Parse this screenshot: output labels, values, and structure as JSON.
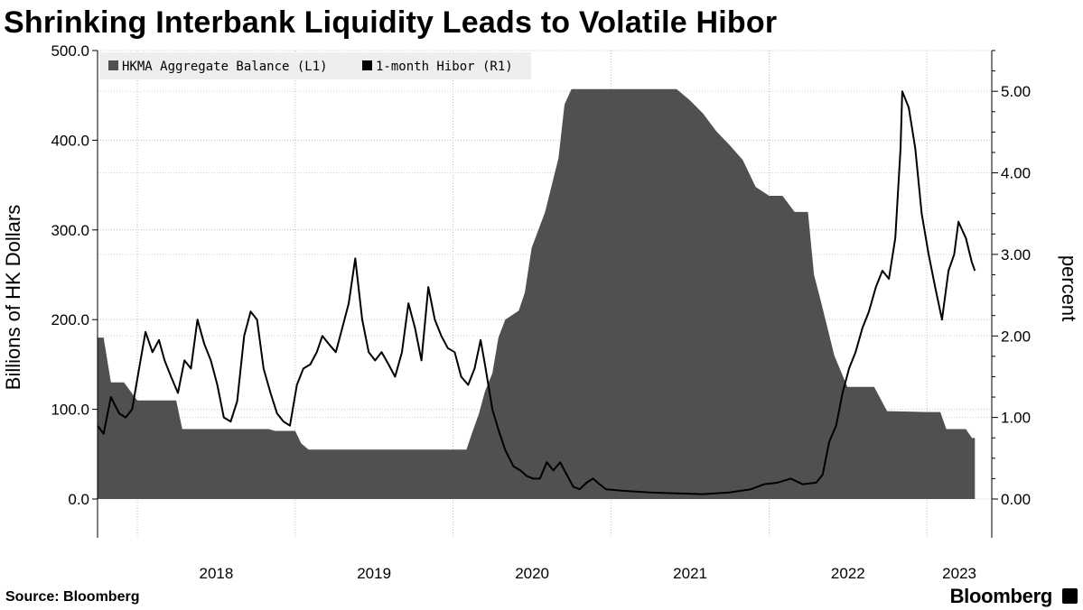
{
  "title": "Shrinking Interbank Liquidity Leads to Volatile Hibor",
  "footer": {
    "source": "Source: Bloomberg",
    "brand": "Bloomberg"
  },
  "chart_data": {
    "type": "area",
    "x_axis": {
      "type": "date",
      "range": [
        "2017-10-01",
        "2023-05-31"
      ],
      "ticks": [
        "2018",
        "2019",
        "2020",
        "2021",
        "2022",
        "2023"
      ]
    },
    "y_left": {
      "label": "Billions of HK Dollars",
      "range": [
        0,
        500
      ],
      "ticks": [
        "0.0",
        "100.0",
        "200.0",
        "300.0",
        "400.0",
        "500.0"
      ]
    },
    "y_right": {
      "label": "percent",
      "range": [
        0,
        5.5
      ],
      "ticks": [
        "0.00",
        "1.00",
        "2.00",
        "3.00",
        "4.00",
        "5.00"
      ]
    },
    "grid": true,
    "legend": {
      "placement": "top-left"
    },
    "colors": {
      "balance": "#505050",
      "hibor": "#000000"
    },
    "series": [
      {
        "name": "HKMA Aggregate Balance (L1)",
        "kind": "area",
        "axis": "left",
        "points": [
          [
            "2017-10-01",
            180
          ],
          [
            "2017-10-15",
            180
          ],
          [
            "2017-11-01",
            130
          ],
          [
            "2017-12-01",
            130
          ],
          [
            "2018-01-01",
            110
          ],
          [
            "2018-04-01",
            110
          ],
          [
            "2018-04-15",
            78
          ],
          [
            "2018-11-01",
            78
          ],
          [
            "2018-11-15",
            76
          ],
          [
            "2018-12-01",
            76
          ],
          [
            "2019-01-01",
            76
          ],
          [
            "2019-01-15",
            62
          ],
          [
            "2019-02-01",
            55
          ],
          [
            "2019-12-01",
            55
          ],
          [
            "2020-02-01",
            55
          ],
          [
            "2020-02-15",
            75
          ],
          [
            "2020-03-01",
            95
          ],
          [
            "2020-03-15",
            120
          ],
          [
            "2020-04-01",
            140
          ],
          [
            "2020-04-15",
            180
          ],
          [
            "2020-05-01",
            200
          ],
          [
            "2020-06-01",
            210
          ],
          [
            "2020-06-15",
            230
          ],
          [
            "2020-07-01",
            280
          ],
          [
            "2020-08-01",
            320
          ],
          [
            "2020-09-01",
            380
          ],
          [
            "2020-09-15",
            440
          ],
          [
            "2020-10-01",
            457
          ],
          [
            "2021-01-01",
            457
          ],
          [
            "2021-06-01",
            457
          ],
          [
            "2021-07-01",
            445
          ],
          [
            "2021-08-01",
            430
          ],
          [
            "2021-09-01",
            410
          ],
          [
            "2021-10-01",
            395
          ],
          [
            "2021-11-01",
            378
          ],
          [
            "2021-12-01",
            348
          ],
          [
            "2022-01-01",
            338
          ],
          [
            "2022-02-01",
            338
          ],
          [
            "2022-03-01",
            320
          ],
          [
            "2022-04-01",
            320
          ],
          [
            "2022-04-15",
            250
          ],
          [
            "2022-05-01",
            220
          ],
          [
            "2022-06-01",
            160
          ],
          [
            "2022-07-01",
            125
          ],
          [
            "2022-09-01",
            125
          ],
          [
            "2022-10-01",
            98
          ],
          [
            "2023-01-01",
            97
          ],
          [
            "2023-02-01",
            97
          ],
          [
            "2023-02-15",
            78
          ],
          [
            "2023-04-01",
            78
          ],
          [
            "2023-04-15",
            68
          ],
          [
            "2023-04-22",
            68
          ]
        ]
      },
      {
        "name": "1-month Hibor (R1)",
        "kind": "line",
        "axis": "right",
        "points": [
          [
            "2017-10-01",
            0.9
          ],
          [
            "2017-10-15",
            0.8
          ],
          [
            "2017-11-01",
            1.25
          ],
          [
            "2017-11-20",
            1.05
          ],
          [
            "2017-12-05",
            1.0
          ],
          [
            "2017-12-20",
            1.1
          ],
          [
            "2018-01-05",
            1.6
          ],
          [
            "2018-01-20",
            2.05
          ],
          [
            "2018-02-05",
            1.8
          ],
          [
            "2018-02-20",
            1.95
          ],
          [
            "2018-03-05",
            1.7
          ],
          [
            "2018-03-20",
            1.5
          ],
          [
            "2018-04-05",
            1.3
          ],
          [
            "2018-04-20",
            1.7
          ],
          [
            "2018-05-05",
            1.6
          ],
          [
            "2018-05-20",
            2.2
          ],
          [
            "2018-06-05",
            1.9
          ],
          [
            "2018-06-20",
            1.7
          ],
          [
            "2018-07-05",
            1.4
          ],
          [
            "2018-07-20",
            1.0
          ],
          [
            "2018-08-05",
            0.95
          ],
          [
            "2018-08-20",
            1.2
          ],
          [
            "2018-09-05",
            2.0
          ],
          [
            "2018-09-20",
            2.3
          ],
          [
            "2018-10-05",
            2.2
          ],
          [
            "2018-10-20",
            1.6
          ],
          [
            "2018-11-05",
            1.3
          ],
          [
            "2018-11-20",
            1.05
          ],
          [
            "2018-12-05",
            0.95
          ],
          [
            "2018-12-20",
            0.9
          ],
          [
            "2019-01-05",
            1.4
          ],
          [
            "2019-01-20",
            1.6
          ],
          [
            "2019-02-05",
            1.65
          ],
          [
            "2019-02-20",
            1.8
          ],
          [
            "2019-03-05",
            2.0
          ],
          [
            "2019-03-20",
            1.9
          ],
          [
            "2019-04-05",
            1.8
          ],
          [
            "2019-04-20",
            2.1
          ],
          [
            "2019-05-05",
            2.4
          ],
          [
            "2019-05-20",
            2.95
          ],
          [
            "2019-06-05",
            2.2
          ],
          [
            "2019-06-20",
            1.8
          ],
          [
            "2019-07-05",
            1.7
          ],
          [
            "2019-07-20",
            1.8
          ],
          [
            "2019-08-05",
            1.65
          ],
          [
            "2019-08-20",
            1.5
          ],
          [
            "2019-09-05",
            1.8
          ],
          [
            "2019-09-20",
            2.4
          ],
          [
            "2019-10-05",
            2.1
          ],
          [
            "2019-10-20",
            1.7
          ],
          [
            "2019-11-05",
            2.6
          ],
          [
            "2019-11-20",
            2.2
          ],
          [
            "2019-12-05",
            2.0
          ],
          [
            "2019-12-20",
            1.85
          ],
          [
            "2020-01-05",
            1.8
          ],
          [
            "2020-01-20",
            1.5
          ],
          [
            "2020-02-05",
            1.4
          ],
          [
            "2020-02-20",
            1.6
          ],
          [
            "2020-03-05",
            1.95
          ],
          [
            "2020-03-15",
            1.65
          ],
          [
            "2020-04-01",
            1.1
          ],
          [
            "2020-04-15",
            0.85
          ],
          [
            "2020-05-01",
            0.6
          ],
          [
            "2020-05-20",
            0.4
          ],
          [
            "2020-06-05",
            0.35
          ],
          [
            "2020-06-20",
            0.28
          ],
          [
            "2020-07-05",
            0.25
          ],
          [
            "2020-07-20",
            0.25
          ],
          [
            "2020-08-05",
            0.45
          ],
          [
            "2020-08-20",
            0.35
          ],
          [
            "2020-09-05",
            0.45
          ],
          [
            "2020-09-20",
            0.3
          ],
          [
            "2020-10-05",
            0.15
          ],
          [
            "2020-10-20",
            0.12
          ],
          [
            "2020-11-05",
            0.2
          ],
          [
            "2020-11-20",
            0.25
          ],
          [
            "2020-12-05",
            0.18
          ],
          [
            "2020-12-20",
            0.12
          ],
          [
            "2021-02-01",
            0.1
          ],
          [
            "2021-04-01",
            0.08
          ],
          [
            "2021-06-01",
            0.07
          ],
          [
            "2021-08-01",
            0.06
          ],
          [
            "2021-10-01",
            0.08
          ],
          [
            "2021-11-20",
            0.12
          ],
          [
            "2021-12-20",
            0.18
          ],
          [
            "2022-01-20",
            0.2
          ],
          [
            "2022-02-20",
            0.25
          ],
          [
            "2022-03-20",
            0.18
          ],
          [
            "2022-04-20",
            0.2
          ],
          [
            "2022-05-05",
            0.3
          ],
          [
            "2022-05-20",
            0.7
          ],
          [
            "2022-06-05",
            0.9
          ],
          [
            "2022-06-20",
            1.3
          ],
          [
            "2022-07-05",
            1.6
          ],
          [
            "2022-07-20",
            1.8
          ],
          [
            "2022-08-05",
            2.1
          ],
          [
            "2022-08-20",
            2.3
          ],
          [
            "2022-09-05",
            2.6
          ],
          [
            "2022-09-20",
            2.8
          ],
          [
            "2022-10-05",
            2.7
          ],
          [
            "2022-10-20",
            3.2
          ],
          [
            "2022-11-01",
            4.3
          ],
          [
            "2022-11-05",
            5.0
          ],
          [
            "2022-11-20",
            4.8
          ],
          [
            "2022-12-05",
            4.3
          ],
          [
            "2022-12-20",
            3.5
          ],
          [
            "2023-01-05",
            3.0
          ],
          [
            "2023-01-20",
            2.6
          ],
          [
            "2023-02-05",
            2.2
          ],
          [
            "2023-02-20",
            2.8
          ],
          [
            "2023-03-05",
            3.0
          ],
          [
            "2023-03-15",
            3.4
          ],
          [
            "2023-04-01",
            3.2
          ],
          [
            "2023-04-15",
            2.9
          ],
          [
            "2023-04-22",
            2.8
          ]
        ]
      }
    ]
  }
}
